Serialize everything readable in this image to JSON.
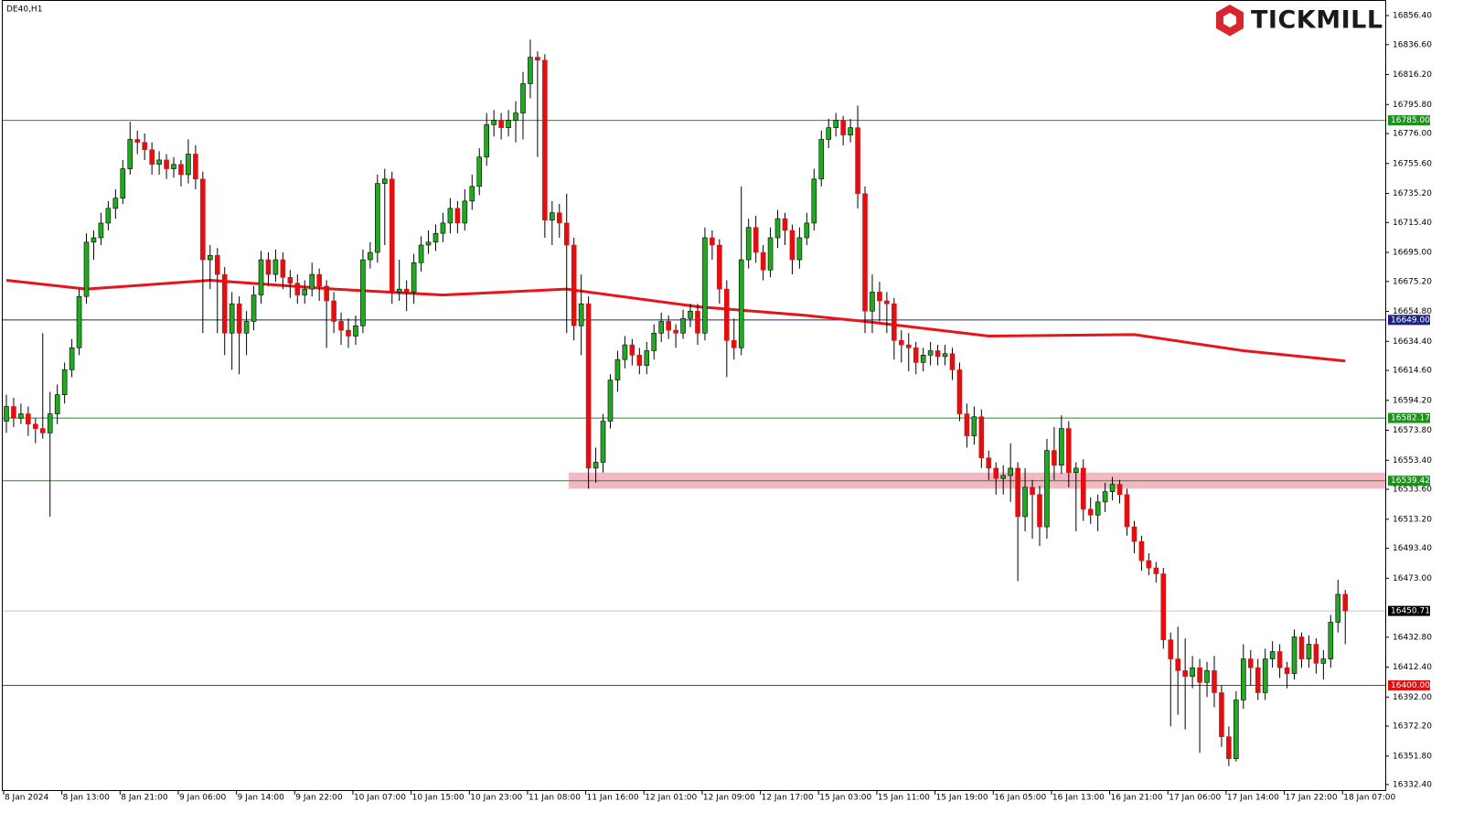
{
  "chart_data": {
    "type": "candlestick",
    "title": "DE40,H1",
    "brand": "TICKMILL",
    "ylim": [
      16328.0,
      16867.0
    ],
    "yticks": [
      {
        "value": 16856.4,
        "label": "16856.40"
      },
      {
        "value": 16836.6,
        "label": "16836.60"
      },
      {
        "value": 16816.2,
        "label": "16816.20"
      },
      {
        "value": 16795.8,
        "label": "16795.80"
      },
      {
        "value": 16776.0,
        "label": "16776.00"
      },
      {
        "value": 16755.6,
        "label": "16755.60"
      },
      {
        "value": 16735.2,
        "label": "16735.20"
      },
      {
        "value": 16715.4,
        "label": "16715.40"
      },
      {
        "value": 16695.0,
        "label": "16695.00"
      },
      {
        "value": 16675.2,
        "label": "16675.20"
      },
      {
        "value": 16654.8,
        "label": "16654.80"
      },
      {
        "value": 16634.4,
        "label": "16634.40"
      },
      {
        "value": 16614.6,
        "label": "16614.60"
      },
      {
        "value": 16594.2,
        "label": "16594.20"
      },
      {
        "value": 16573.8,
        "label": "16573.80"
      },
      {
        "value": 16553.4,
        "label": "16553.40"
      },
      {
        "value": 16533.6,
        "label": "16533.60"
      },
      {
        "value": 16513.2,
        "label": "16513.20"
      },
      {
        "value": 16493.4,
        "label": "16493.40"
      },
      {
        "value": 16473.0,
        "label": "16473.00"
      },
      {
        "value": 16432.8,
        "label": "16432.80"
      },
      {
        "value": 16412.4,
        "label": "16412.40"
      },
      {
        "value": 16392.0,
        "label": "16392.00"
      },
      {
        "value": 16372.2,
        "label": "16372.20"
      },
      {
        "value": 16351.8,
        "label": "16351.80"
      },
      {
        "value": 16332.4,
        "label": "16332.40"
      }
    ],
    "up_color": "#22a822",
    "down_color": "#e01010",
    "hlines": [
      {
        "value": 16785.0,
        "label": "16785.00",
        "color": "#1f8f1f"
      },
      {
        "value": 16649.0,
        "label": "16649.00",
        "color": "#1a237e"
      },
      {
        "value": 16582.17,
        "label": "16582.17",
        "color": "#1f8f1f"
      },
      {
        "value": 16539.42,
        "label": "16539.42",
        "color": "#1f8f1f"
      },
      {
        "value": 16450.71,
        "label": "16450.71",
        "color": "#000000"
      },
      {
        "value": 16400.0,
        "label": "16400.00",
        "color": "#e01010"
      }
    ],
    "zone": {
      "low": 16534,
      "high": 16545,
      "color": "#f4b8c4"
    },
    "ma": {
      "color": "#e8141a",
      "x": [
        0,
        11,
        28,
        45,
        60,
        77,
        95,
        110,
        118,
        135,
        155,
        170,
        184
      ],
      "values": [
        16676,
        16670,
        16676,
        16670,
        16666,
        16670,
        16658,
        16652,
        16648,
        16638,
        16639,
        16628,
        16621
      ]
    },
    "categories": [
      "8 Jan 2024",
      null,
      null,
      null,
      null,
      null,
      null,
      null,
      "8 Jan 13:00",
      null,
      null,
      null,
      null,
      null,
      null,
      null,
      "8 Jan 21:00",
      null,
      null,
      null,
      null,
      null,
      null,
      null,
      "9 Jan 06:00",
      null,
      null,
      null,
      null,
      null,
      null,
      null,
      "9 Jan 14:00",
      null,
      null,
      null,
      null,
      null,
      null,
      null,
      "9 Jan 22:00",
      null,
      null,
      null,
      null,
      null,
      null,
      null,
      "10 Jan 07:00",
      null,
      null,
      null,
      null,
      null,
      null,
      null,
      "10 Jan 15:00",
      null,
      null,
      null,
      null,
      null,
      null,
      null,
      "10 Jan 23:00",
      null,
      null,
      null,
      null,
      null,
      null,
      null,
      "11 Jan 08:00",
      null,
      null,
      null,
      null,
      null,
      null,
      null,
      "11 Jan 16:00",
      null,
      null,
      null,
      null,
      null,
      null,
      null,
      "12 Jan 01:00",
      null,
      null,
      null,
      null,
      null,
      null,
      null,
      "12 Jan 09:00",
      null,
      null,
      null,
      null,
      null,
      null,
      null,
      "12 Jan 17:00",
      null,
      null,
      null,
      null,
      null,
      null,
      null,
      "15 Jan 03:00",
      null,
      null,
      null,
      null,
      null,
      null,
      null,
      "15 Jan 11:00",
      null,
      null,
      null,
      null,
      null,
      null,
      null,
      "15 Jan 19:00",
      null,
      null,
      null,
      null,
      null,
      null,
      null,
      "16 Jan 05:00",
      null,
      null,
      null,
      null,
      null,
      null,
      null,
      "16 Jan 13:00",
      null,
      null,
      null,
      null,
      null,
      null,
      null,
      "16 Jan 21:00",
      null,
      null,
      null,
      null,
      null,
      null,
      null,
      "17 Jan 06:00",
      null,
      null,
      null,
      null,
      null,
      null,
      null,
      "17 Jan 14:00",
      null,
      null,
      null,
      null,
      null,
      null,
      null,
      "17 Jan 22:00",
      null,
      null,
      null,
      null,
      null,
      null,
      null,
      "18 Jan 07:00"
    ],
    "candles": [
      [
        16580,
        16598,
        16572,
        16590
      ],
      [
        16590,
        16596,
        16576,
        16582
      ],
      [
        16582,
        16592,
        16578,
        16585
      ],
      [
        16585,
        16590,
        16570,
        16578
      ],
      [
        16578,
        16582,
        16565,
        16575
      ],
      [
        16575,
        16640,
        16568,
        16572
      ],
      [
        16572,
        16600,
        16515,
        16585
      ],
      [
        16585,
        16605,
        16578,
        16598
      ],
      [
        16598,
        16620,
        16592,
        16615
      ],
      [
        16615,
        16636,
        16610,
        16630
      ],
      [
        16630,
        16670,
        16625,
        16665
      ],
      [
        16665,
        16708,
        16660,
        16702
      ],
      [
        16702,
        16710,
        16690,
        16705
      ],
      [
        16705,
        16722,
        16700,
        16715
      ],
      [
        16715,
        16730,
        16710,
        16725
      ],
      [
        16725,
        16738,
        16718,
        16732
      ],
      [
        16732,
        16758,
        16728,
        16752
      ],
      [
        16752,
        16784,
        16748,
        16772
      ],
      [
        16772,
        16778,
        16762,
        16770
      ],
      [
        16770,
        16776,
        16758,
        16765
      ],
      [
        16765,
        16770,
        16748,
        16755
      ],
      [
        16755,
        16764,
        16748,
        16758
      ],
      [
        16758,
        16762,
        16745,
        16752
      ],
      [
        16752,
        16760,
        16746,
        16755
      ],
      [
        16755,
        16758,
        16740,
        16748
      ],
      [
        16748,
        16772,
        16742,
        16762
      ],
      [
        16762,
        16768,
        16738,
        16745
      ],
      [
        16745,
        16750,
        16640,
        16690
      ],
      [
        16690,
        16700,
        16670,
        16693
      ],
      [
        16693,
        16698,
        16640,
        16680
      ],
      [
        16680,
        16685,
        16625,
        16640
      ],
      [
        16640,
        16668,
        16615,
        16660
      ],
      [
        16660,
        16665,
        16612,
        16640
      ],
      [
        16640,
        16655,
        16625,
        16648
      ],
      [
        16648,
        16672,
        16642,
        16666
      ],
      [
        16666,
        16696,
        16660,
        16690
      ],
      [
        16690,
        16695,
        16672,
        16680
      ],
      [
        16680,
        16697,
        16675,
        16690
      ],
      [
        16690,
        16695,
        16670,
        16678
      ],
      [
        16678,
        16683,
        16664,
        16674
      ],
      [
        16674,
        16680,
        16660,
        16666
      ],
      [
        16666,
        16676,
        16660,
        16670
      ],
      [
        16670,
        16688,
        16665,
        16680
      ],
      [
        16680,
        16684,
        16662,
        16672
      ],
      [
        16672,
        16676,
        16630,
        16662
      ],
      [
        16662,
        16668,
        16640,
        16648
      ],
      [
        16648,
        16654,
        16632,
        16642
      ],
      [
        16642,
        16650,
        16630,
        16638
      ],
      [
        16638,
        16652,
        16632,
        16645
      ],
      [
        16645,
        16697,
        16640,
        16690
      ],
      [
        16690,
        16702,
        16684,
        16695
      ],
      [
        16695,
        16748,
        16688,
        16742
      ],
      [
        16742,
        16752,
        16700,
        16745
      ],
      [
        16745,
        16750,
        16660,
        16668
      ],
      [
        16668,
        16690,
        16662,
        16670
      ],
      [
        16670,
        16676,
        16655,
        16668
      ],
      [
        16668,
        16694,
        16660,
        16688
      ],
      [
        16688,
        16706,
        16682,
        16700
      ],
      [
        16700,
        16710,
        16694,
        16702
      ],
      [
        16702,
        16714,
        16696,
        16708
      ],
      [
        16708,
        16722,
        16702,
        16715
      ],
      [
        16715,
        16732,
        16708,
        16725
      ],
      [
        16725,
        16730,
        16708,
        16715
      ],
      [
        16715,
        16738,
        16710,
        16730
      ],
      [
        16730,
        16748,
        16724,
        16740
      ],
      [
        16740,
        16766,
        16734,
        16760
      ],
      [
        16760,
        16790,
        16754,
        16782
      ],
      [
        16782,
        16792,
        16774,
        16785
      ],
      [
        16785,
        16790,
        16772,
        16780
      ],
      [
        16780,
        16792,
        16774,
        16785
      ],
      [
        16785,
        16798,
        16770,
        16790
      ],
      [
        16790,
        16818,
        16772,
        16810
      ],
      [
        16810,
        16840,
        16800,
        16828
      ],
      [
        16828,
        16832,
        16760,
        16826
      ],
      [
        16826,
        16830,
        16705,
        16717
      ],
      [
        16717,
        16730,
        16700,
        16722
      ],
      [
        16722,
        16728,
        16705,
        16715
      ],
      [
        16715,
        16735,
        16640,
        16700
      ],
      [
        16700,
        16705,
        16635,
        16645
      ],
      [
        16645,
        16680,
        16625,
        16660
      ],
      [
        16660,
        16665,
        16534,
        16548
      ],
      [
        16548,
        16562,
        16538,
        16552
      ],
      [
        16552,
        16585,
        16545,
        16580
      ],
      [
        16580,
        16612,
        16575,
        16608
      ],
      [
        16608,
        16628,
        16600,
        16622
      ],
      [
        16622,
        16638,
        16616,
        16632
      ],
      [
        16632,
        16636,
        16618,
        16625
      ],
      [
        16625,
        16630,
        16612,
        16618
      ],
      [
        16618,
        16634,
        16612,
        16628
      ],
      [
        16628,
        16646,
        16622,
        16640
      ],
      [
        16640,
        16654,
        16634,
        16648
      ],
      [
        16648,
        16652,
        16636,
        16642
      ],
      [
        16642,
        16646,
        16630,
        16640
      ],
      [
        16640,
        16656,
        16636,
        16650
      ],
      [
        16650,
        16660,
        16644,
        16655
      ],
      [
        16655,
        16660,
        16632,
        16640
      ],
      [
        16640,
        16712,
        16635,
        16705
      ],
      [
        16705,
        16710,
        16690,
        16700
      ],
      [
        16700,
        16704,
        16660,
        16670
      ],
      [
        16670,
        16676,
        16610,
        16635
      ],
      [
        16635,
        16650,
        16622,
        16630
      ],
      [
        16630,
        16740,
        16625,
        16690
      ],
      [
        16690,
        16718,
        16684,
        16712
      ],
      [
        16712,
        16720,
        16688,
        16695
      ],
      [
        16695,
        16700,
        16676,
        16683
      ],
      [
        16683,
        16712,
        16678,
        16705
      ],
      [
        16705,
        16724,
        16698,
        16718
      ],
      [
        16718,
        16722,
        16700,
        16710
      ],
      [
        16710,
        16714,
        16680,
        16690
      ],
      [
        16690,
        16712,
        16684,
        16705
      ],
      [
        16705,
        16722,
        16700,
        16715
      ],
      [
        16715,
        16752,
        16710,
        16745
      ],
      [
        16745,
        16778,
        16740,
        16772
      ],
      [
        16772,
        16786,
        16766,
        16780
      ],
      [
        16780,
        16790,
        16774,
        16785
      ],
      [
        16785,
        16788,
        16768,
        16775
      ],
      [
        16775,
        16786,
        16770,
        16780
      ],
      [
        16780,
        16795,
        16725,
        16735
      ],
      [
        16735,
        16740,
        16640,
        16655
      ],
      [
        16655,
        16680,
        16640,
        16668
      ],
      [
        16668,
        16675,
        16648,
        16662
      ],
      [
        16662,
        16668,
        16640,
        16660
      ],
      [
        16660,
        16664,
        16622,
        16635
      ],
      [
        16635,
        16642,
        16620,
        16632
      ],
      [
        16632,
        16640,
        16614,
        16630
      ],
      [
        16630,
        16634,
        16612,
        16620
      ],
      [
        16620,
        16630,
        16614,
        16625
      ],
      [
        16625,
        16634,
        16618,
        16628
      ],
      [
        16628,
        16632,
        16618,
        16624
      ],
      [
        16624,
        16632,
        16618,
        16626
      ],
      [
        16626,
        16630,
        16608,
        16615
      ],
      [
        16615,
        16620,
        16580,
        16585
      ],
      [
        16585,
        16592,
        16562,
        16570
      ],
      [
        16570,
        16590,
        16564,
        16583
      ],
      [
        16583,
        16588,
        16548,
        16555
      ],
      [
        16555,
        16560,
        16540,
        16548
      ],
      [
        16548,
        16552,
        16530,
        16541
      ],
      [
        16541,
        16550,
        16530,
        16543
      ],
      [
        16543,
        16565,
        16525,
        16548
      ],
      [
        16548,
        16552,
        16471,
        16515
      ],
      [
        16515,
        16548,
        16505,
        16535
      ],
      [
        16535,
        16540,
        16500,
        16530
      ],
      [
        16530,
        16536,
        16495,
        16508
      ],
      [
        16508,
        16568,
        16500,
        16560
      ],
      [
        16560,
        16576,
        16540,
        16550
      ],
      [
        16550,
        16584,
        16544,
        16575
      ],
      [
        16575,
        16580,
        16535,
        16545
      ],
      [
        16545,
        16552,
        16505,
        16548
      ],
      [
        16548,
        16554,
        16512,
        16520
      ],
      [
        16520,
        16528,
        16510,
        16516
      ],
      [
        16516,
        16530,
        16505,
        16525
      ],
      [
        16525,
        16538,
        16518,
        16532
      ],
      [
        16532,
        16542,
        16526,
        16537
      ],
      [
        16537,
        16540,
        16524,
        16530
      ],
      [
        16530,
        16534,
        16502,
        16508
      ],
      [
        16508,
        16512,
        16490,
        16498
      ],
      [
        16498,
        16502,
        16478,
        16485
      ],
      [
        16485,
        16490,
        16475,
        16480
      ],
      [
        16480,
        16484,
        16470,
        16476
      ],
      [
        16476,
        16480,
        16425,
        16431
      ],
      [
        16431,
        16436,
        16372,
        16418
      ],
      [
        16418,
        16440,
        16380,
        16410
      ],
      [
        16410,
        16432,
        16370,
        16406
      ],
      [
        16406,
        16420,
        16398,
        16412
      ],
      [
        16412,
        16418,
        16354,
        16402
      ],
      [
        16402,
        16416,
        16392,
        16410
      ],
      [
        16410,
        16420,
        16385,
        16395
      ],
      [
        16395,
        16400,
        16358,
        16365
      ],
      [
        16365,
        16372,
        16345,
        16350
      ],
      [
        16350,
        16396,
        16348,
        16390
      ],
      [
        16390,
        16428,
        16384,
        16418
      ],
      [
        16418,
        16424,
        16400,
        16412
      ],
      [
        16412,
        16418,
        16390,
        16395
      ],
      [
        16395,
        16425,
        16390,
        16418
      ],
      [
        16418,
        16430,
        16412,
        16423
      ],
      [
        16423,
        16428,
        16405,
        16412
      ],
      [
        16412,
        16416,
        16398,
        16408
      ],
      [
        16408,
        16438,
        16404,
        16433
      ],
      [
        16433,
        16436,
        16412,
        16418
      ],
      [
        16418,
        16434,
        16412,
        16428
      ],
      [
        16428,
        16432,
        16408,
        16415
      ],
      [
        16415,
        16424,
        16404,
        16418
      ],
      [
        16418,
        16448,
        16412,
        16443
      ],
      [
        16443,
        16472,
        16436,
        16462
      ],
      [
        16462,
        16465,
        16428,
        16450.71
      ]
    ]
  }
}
